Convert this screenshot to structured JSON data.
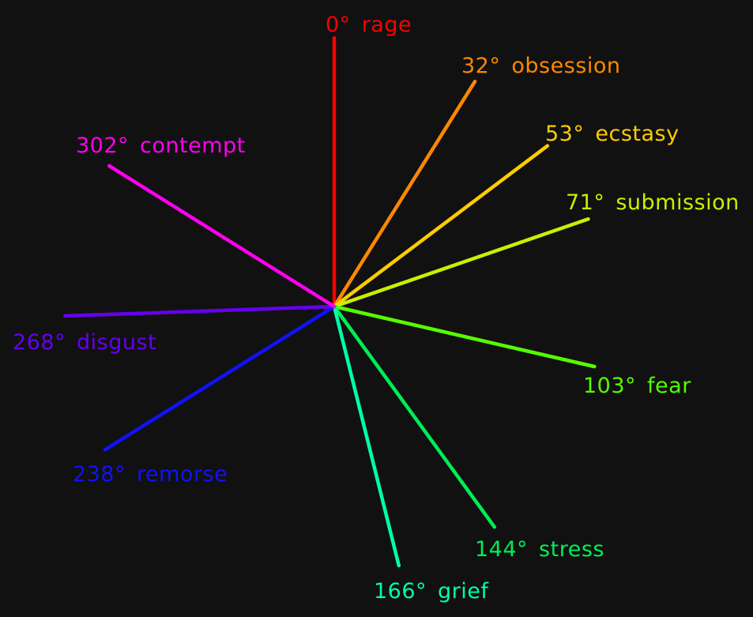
{
  "rays": [
    {
      "angle": 0,
      "angle_label": "0°",
      "emotion": "rage",
      "color": "#ff0000"
    },
    {
      "angle": 32,
      "angle_label": "32°",
      "emotion": "obsession",
      "color": "#ff8800"
    },
    {
      "angle": 53,
      "angle_label": "53°",
      "emotion": "ecstasy",
      "color": "#ffcc00"
    },
    {
      "angle": 71,
      "angle_label": "71°",
      "emotion": "submission",
      "color": "#ccee00"
    },
    {
      "angle": 103,
      "angle_label": "103°",
      "emotion": "fear",
      "color": "#55ff00"
    },
    {
      "angle": 144,
      "angle_label": "144°",
      "emotion": "stress",
      "color": "#00ee55"
    },
    {
      "angle": 166,
      "angle_label": "166°",
      "emotion": "grief",
      "color": "#00ffaa"
    },
    {
      "angle": 238,
      "angle_label": "238°",
      "emotion": "remorse",
      "color": "#1111ff"
    },
    {
      "angle": 268,
      "angle_label": "268°",
      "emotion": "disgust",
      "color": "#6600ee"
    },
    {
      "angle": 302,
      "angle_label": "302°",
      "emotion": "contempt",
      "color": "#ff00ee"
    }
  ]
}
